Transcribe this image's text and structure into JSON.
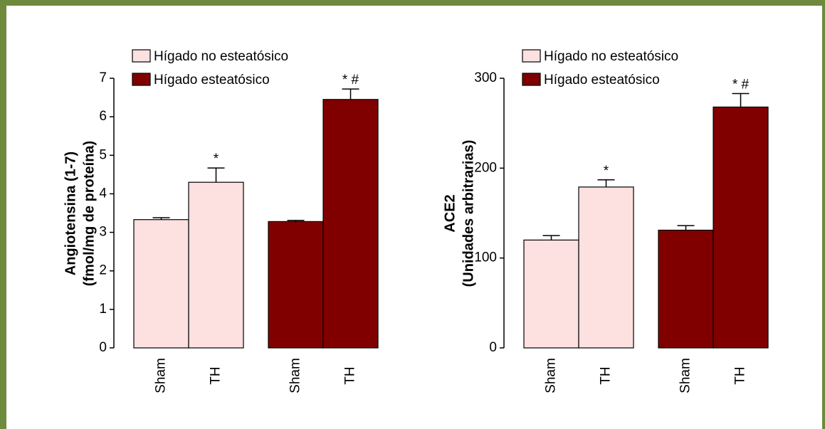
{
  "chart_data": [
    {
      "type": "bar",
      "y_label": [
        "Angiotensina (1-7)",
        "(fmol/mg de proteína)"
      ],
      "categories": [
        "Sham",
        "TH",
        "Sham",
        "TH"
      ],
      "series": [
        {
          "name": "Hígado no esteatósico",
          "color": "#fde0e0",
          "values": [
            3.33,
            4.3,
            null,
            null
          ],
          "errors": [
            0.05,
            0.37,
            null,
            null
          ]
        },
        {
          "name": "Hígado esteatósico",
          "color": "#800000",
          "values": [
            null,
            null,
            3.28,
            6.45
          ],
          "errors": [
            null,
            null,
            0.03,
            0.27
          ]
        }
      ],
      "annotations": [
        null,
        "*",
        null,
        "* #"
      ],
      "ylim": [
        0,
        7
      ],
      "yticks": [
        0,
        1,
        2,
        3,
        4,
        5,
        6,
        7
      ]
    },
    {
      "type": "bar",
      "y_label": [
        "ACE2",
        "(Unidades arbitrarias)"
      ],
      "categories": [
        "Sham",
        "TH",
        "Sham",
        "TH"
      ],
      "series": [
        {
          "name": "Hígado no esteatósico",
          "color": "#fde0e0",
          "values": [
            120,
            179,
            null,
            null
          ],
          "errors": [
            5,
            8,
            null,
            null
          ]
        },
        {
          "name": "Hígado esteatósico",
          "color": "#800000",
          "values": [
            null,
            null,
            131,
            268
          ],
          "errors": [
            null,
            null,
            5,
            15
          ]
        }
      ],
      "annotations": [
        null,
        "*",
        null,
        "* #"
      ],
      "ylim": [
        0,
        300
      ],
      "yticks": [
        0,
        100,
        200,
        300
      ]
    }
  ]
}
